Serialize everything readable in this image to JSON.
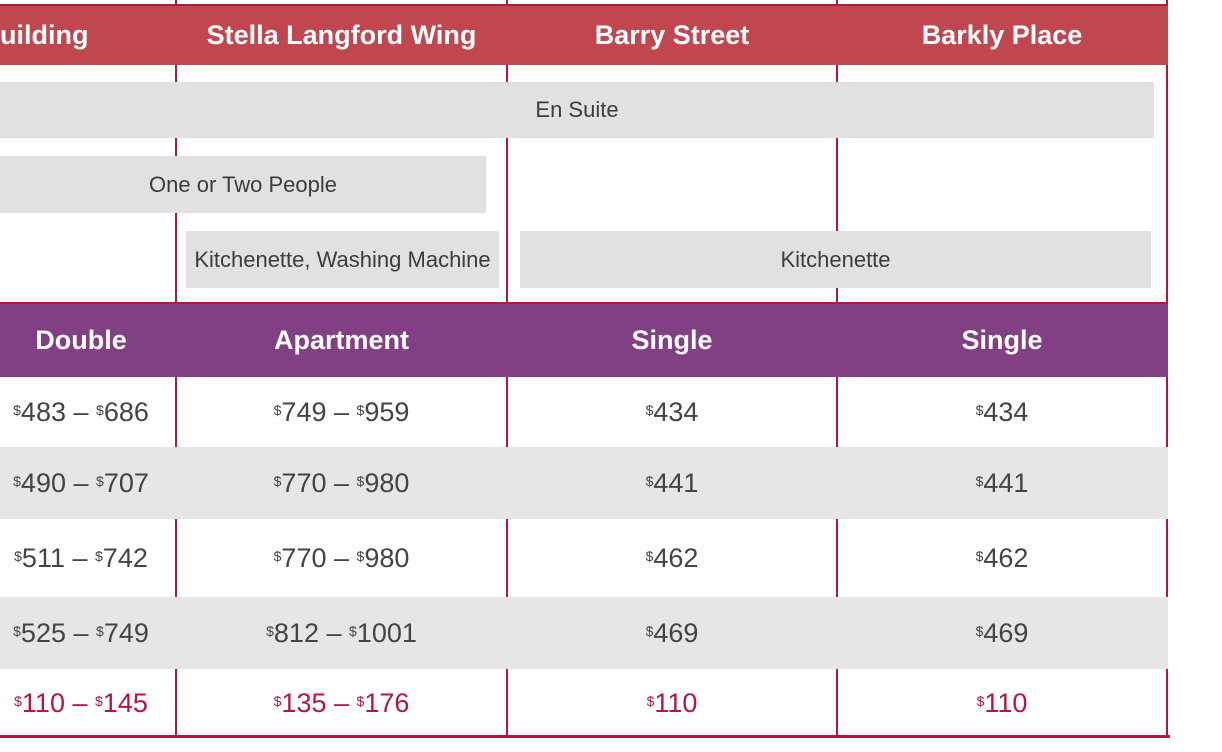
{
  "header": {
    "columns": [
      "uilding",
      "Stella Langford Wing",
      "Barry Street",
      "Barkly Place"
    ]
  },
  "features": {
    "en_suite": "En Suite",
    "one_or_two": "One or Two People",
    "kitchenette_washing": "Kitchenette, Washing Machine",
    "kitchenette": "Kitchenette"
  },
  "room_types": [
    "Double",
    "Apartment",
    "Single",
    "Single"
  ],
  "currency_symbol": "$",
  "rows": [
    [
      {
        "a": "483",
        "b": "686"
      },
      {
        "a": "749",
        "b": "959"
      },
      {
        "a": "434"
      },
      {
        "a": "434"
      }
    ],
    [
      {
        "a": "490",
        "b": "707"
      },
      {
        "a": "770",
        "b": "980"
      },
      {
        "a": "441"
      },
      {
        "a": "441"
      }
    ],
    [
      {
        "a": "511",
        "b": "742"
      },
      {
        "a": "770",
        "b": "980"
      },
      {
        "a": "462"
      },
      {
        "a": "462"
      }
    ],
    [
      {
        "a": "525",
        "b": "749"
      },
      {
        "a": "812",
        "b": "1001"
      },
      {
        "a": "469"
      },
      {
        "a": "469"
      }
    ],
    [
      {
        "a": "110",
        "b": "145"
      },
      {
        "a": "135",
        "b": "176"
      },
      {
        "a": "110"
      },
      {
        "a": "110"
      }
    ]
  ],
  "colors": {
    "header_red": "#c04650",
    "header_purple": "#823f84",
    "line": "#b5163e",
    "feature_bg": "#e1e1df",
    "row_shade": "#e6e6e8"
  }
}
